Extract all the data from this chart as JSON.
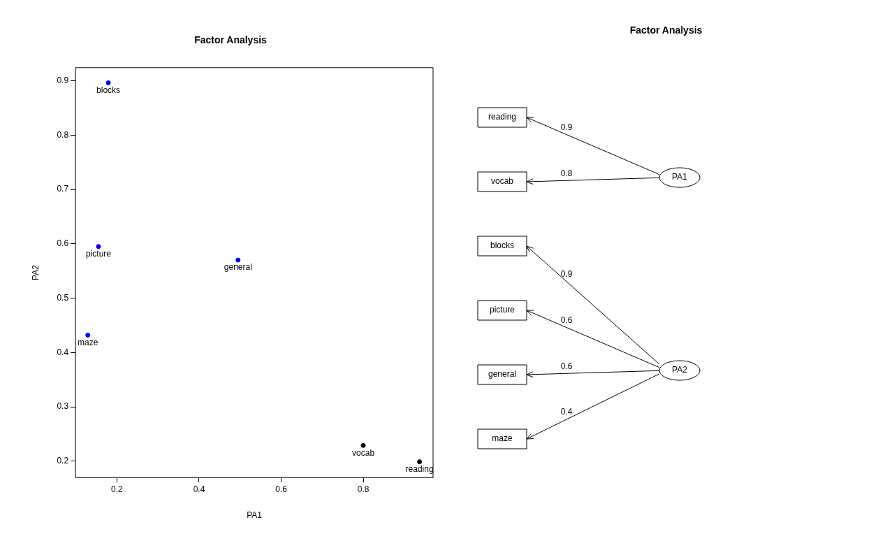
{
  "chart_data": [
    {
      "type": "scatter",
      "title": "Factor Analysis",
      "xlabel": "PA1",
      "ylabel": "PA2",
      "xlim": [
        0.099,
        0.97
      ],
      "ylim": [
        0.17,
        0.924
      ],
      "xticks": [
        0.2,
        0.4,
        0.6,
        0.8
      ],
      "yticks": [
        0.2,
        0.3,
        0.4,
        0.5,
        0.6,
        0.7,
        0.8,
        0.9
      ],
      "grid": false,
      "marker": "circle",
      "series": [
        {
          "color": "#0000ff",
          "x": [
            0.179,
            0.155,
            0.129,
            0.495
          ],
          "values": [
            0.896,
            0.595,
            0.432,
            0.57
          ]
        },
        {
          "color": "#000000",
          "x": [
            0.8,
            0.937
          ],
          "values": [
            0.229,
            0.199
          ]
        }
      ],
      "annotations": [
        {
          "text": "blocks",
          "x": 0.179,
          "y": 0.896
        },
        {
          "text": "picture",
          "x": 0.155,
          "y": 0.595
        },
        {
          "text": "maze",
          "x": 0.129,
          "y": 0.432
        },
        {
          "text": "general",
          "x": 0.495,
          "y": 0.57
        },
        {
          "text": "vocab",
          "x": 0.8,
          "y": 0.229
        },
        {
          "text": "reading",
          "x": 0.937,
          "y": 0.199
        }
      ]
    },
    {
      "type": "other",
      "title": "Factor Analysis",
      "data_labels": true,
      "categories": [
        "reading",
        "vocab",
        "blocks",
        "picture",
        "general",
        "maze"
      ],
      "series": [
        {
          "name": "PA1",
          "color": "#000000",
          "values": [
            0.9,
            0.8,
            null,
            null,
            null,
            null
          ]
        },
        {
          "name": "PA2",
          "color": "#000000",
          "values": [
            null,
            null,
            0.9,
            0.6,
            0.6,
            0.4
          ]
        }
      ]
    }
  ]
}
